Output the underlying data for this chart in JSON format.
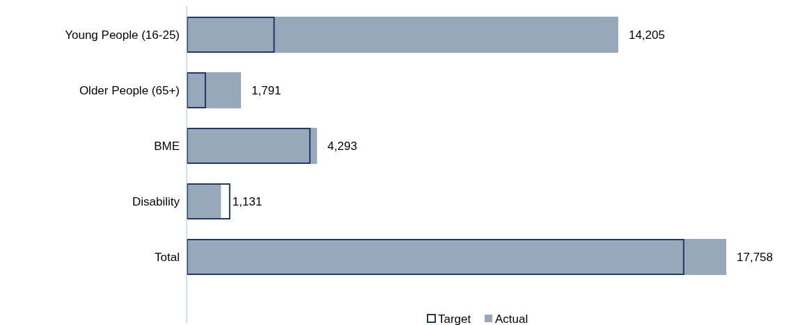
{
  "chart_data": {
    "type": "bar",
    "orientation": "horizontal",
    "categories": [
      "Young People (16-25)",
      "Older People (65+)",
      "BME",
      "Disability",
      "Total"
    ],
    "series": [
      {
        "name": "Target",
        "color": "#1f3864",
        "values": [
          2900,
          640,
          4080,
          1440,
          16380
        ]
      },
      {
        "name": "Actual",
        "color": "#98a8bb",
        "values": [
          14205,
          1791,
          4293,
          1131,
          17758
        ],
        "value_labels": [
          "14,205",
          "1,791",
          "4,293",
          "1,131",
          "17,758"
        ]
      }
    ],
    "legend": "bottom"
  }
}
